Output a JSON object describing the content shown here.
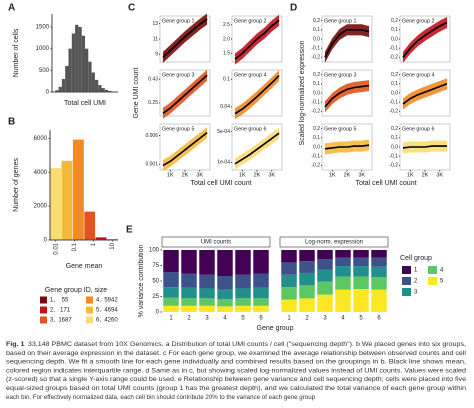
{
  "panel_labels": [
    "A",
    "B",
    "C",
    "D",
    "E"
  ],
  "panel_a": {
    "type": "histogram",
    "ylabel": "Number of cells",
    "xlabel": "Total cell UMI",
    "bins": [
      500,
      700,
      900,
      1100,
      1300,
      1500,
      1700,
      1900,
      2100,
      2300,
      2500,
      2700,
      2900,
      3100,
      3300,
      3500,
      3700,
      3900,
      4100,
      4300,
      4500
    ],
    "counts": [
      10,
      40,
      120,
      300,
      600,
      1000,
      1350,
      1550,
      1500,
      1300,
      1000,
      700,
      450,
      280,
      160,
      90,
      50,
      25,
      12,
      5
    ],
    "ylim": [
      0,
      1800
    ],
    "yticks": [
      0,
      500,
      1000,
      1500
    ],
    "color": "#555555"
  },
  "panel_b": {
    "type": "bar",
    "ylabel": "Number of genes",
    "xlabel": "Gene mean",
    "xlim": [
      0.005,
      20
    ],
    "xticks": [
      0.01,
      0.1,
      1,
      10
    ],
    "ylim": [
      0,
      6500
    ],
    "yticks": [
      0,
      2000,
      4000,
      6000
    ],
    "legend_title": "Gene group ID, size",
    "groups": [
      {
        "label": "1,    55",
        "size": 55,
        "color": "#7a0a0a"
      },
      {
        "label": "2,   171",
        "size": 171,
        "color": "#c1121f"
      },
      {
        "label": "3,  1687",
        "size": 1687,
        "color": "#e2531d"
      },
      {
        "label": "4,  5942",
        "size": 5942,
        "color": "#f08a24"
      },
      {
        "label": "5,  4694",
        "size": 4694,
        "color": "#f6b83c"
      },
      {
        "label": "6,  4260",
        "size": 4260,
        "color": "#f9dc72"
      }
    ]
  },
  "panel_c": {
    "type": "line",
    "ylabel": "Gene UMI count",
    "xlabel": "Total cell UMI count",
    "x": [
      500,
      1000,
      1500,
      2000,
      2500,
      3000,
      3500
    ],
    "xlim": [
      300,
      3700
    ],
    "xticks": [
      {
        "value": 1000,
        "label": "1K"
      },
      {
        "value": 2000,
        "label": "2K"
      },
      {
        "value": 3000,
        "label": "3K"
      }
    ],
    "panels": [
      {
        "title": "Gene group 1",
        "ylim": [
          8,
          14
        ],
        "yticks": [
          9,
          11,
          13
        ],
        "values": [
          8.6,
          9.5,
          10.4,
          11.3,
          12.1,
          12.9,
          13.6
        ]
      },
      {
        "title": "Gene group 2",
        "ylim": [
          1.2,
          2.8
        ],
        "yticks": [
          1.5,
          {
            "value": 2,
            "label": "2.0"
          },
          2.5
        ],
        "values": [
          1.3,
          1.5,
          1.75,
          2.0,
          2.2,
          2.45,
          2.65
        ]
      },
      {
        "title": "Gene group 3",
        "ylim": [
          0.15,
          0.5
        ],
        "yticks": [
          0.25,
          0.43
        ],
        "values": [
          0.17,
          0.21,
          0.26,
          0.31,
          0.36,
          0.41,
          0.46
        ]
      },
      {
        "title": "Gene group 4",
        "ylim": [
          0.02,
          0.12
        ],
        "yticks": [
          0.04,
          0.1
        ],
        "values": [
          0.025,
          0.035,
          0.048,
          0.062,
          0.077,
          0.092,
          0.108
        ]
      },
      {
        "title": "Gene group 5",
        "ylim": [
          0,
          0.008
        ],
        "yticks": [
          0.001,
          0.006
        ],
        "values": [
          0.0008,
          0.0015,
          0.0025,
          0.0035,
          0.0045,
          0.0055,
          0.0065
        ]
      },
      {
        "title": "Gene group 6",
        "ylim": [
          0,
          0.0006
        ],
        "yticks": [
          {
            "value": 0.0001,
            "label": "1e-04"
          },
          {
            "value": 0.0005,
            "label": "5e-04"
          }
        ],
        "values": [
          8e-05,
          0.00014,
          0.0002,
          0.00027,
          0.00034,
          0.00041,
          0.00048
        ]
      }
    ]
  },
  "panel_d": {
    "type": "line",
    "ylabel": "Scaled log-normalized expression",
    "xlabel": "Total cell UMI count",
    "x": [
      500,
      1000,
      1500,
      2000,
      2500,
      3000,
      3500
    ],
    "xlim": [
      300,
      3700
    ],
    "xticks": [
      {
        "value": 1000,
        "label": "1K"
      },
      {
        "value": 2000,
        "label": "2K"
      },
      {
        "value": 3000,
        "label": "3K"
      }
    ],
    "ylim": [
      -0.25,
      0.25
    ],
    "yticks": [
      {
        "value": -0.2,
        "label": "-0,2"
      },
      {
        "value": -0.1,
        "label": "-0,1"
      },
      {
        "value": 0,
        "label": "0,0"
      },
      {
        "value": 0.1,
        "label": "0,1"
      },
      {
        "value": 0.2,
        "label": "0,2"
      }
    ],
    "panels": [
      {
        "title": "Gene group 1",
        "values": [
          -0.2,
          -0.05,
          0.05,
          0.1,
          0.1,
          0.1,
          0.08
        ]
      },
      {
        "title": "Gene group 2",
        "values": [
          -0.2,
          -0.1,
          -0.02,
          0.04,
          0.09,
          0.14,
          0.18
        ]
      },
      {
        "title": "Gene group 3",
        "values": [
          -0.15,
          -0.06,
          0.0,
          0.04,
          0.06,
          0.07,
          0.08
        ]
      },
      {
        "title": "Gene group 4",
        "values": [
          -0.12,
          -0.06,
          -0.02,
          0.01,
          0.04,
          0.07,
          0.1
        ]
      },
      {
        "title": "Gene group 5",
        "values": [
          -0.02,
          -0.01,
          0,
          0,
          0.01,
          0.01,
          0.02
        ]
      },
      {
        "title": "Gene group 6",
        "values": [
          -0.01,
          0,
          0,
          0,
          0.01,
          0.01,
          0.01
        ]
      }
    ]
  },
  "panel_e": {
    "type": "stacked_bar",
    "ylabel": "% variance contribution",
    "xlabel": "Gene group",
    "categories": [
      "1",
      "2",
      "3",
      "4",
      "5",
      "6"
    ],
    "ylim": [
      0,
      100
    ],
    "yticks": [
      0,
      25,
      50,
      75,
      100
    ],
    "legend_title": "Cell group",
    "series": [
      {
        "name": "1",
        "color": "#440154"
      },
      {
        "name": "2",
        "color": "#3b528b"
      },
      {
        "name": "3",
        "color": "#21908c"
      },
      {
        "name": "4",
        "color": "#5dc863"
      },
      {
        "name": "5",
        "color": "#fde725"
      }
    ],
    "facets": [
      {
        "title": "UMI counts",
        "values": [
          [
            36,
            38,
            40,
            42,
            40,
            38
          ],
          [
            24,
            23,
            22,
            22,
            22,
            23
          ],
          [
            17,
            17,
            16,
            15,
            16,
            17
          ],
          [
            13,
            12,
            12,
            12,
            12,
            12
          ],
          [
            10,
            10,
            10,
            9,
            10,
            10
          ]
        ]
      },
      {
        "title": "Log-norm. expression",
        "values": [
          [
            20,
            18,
            15,
            12,
            12,
            12
          ],
          [
            20,
            19,
            17,
            14,
            14,
            15
          ],
          [
            20,
            20,
            19,
            17,
            17,
            17
          ],
          [
            20,
            21,
            21,
            21,
            20,
            20
          ],
          [
            20,
            22,
            28,
            36,
            37,
            36
          ]
        ]
      }
    ]
  },
  "caption": {
    "label": "Fig. 1",
    "lines": [
      "33,148 PBMC dataset from 10X Genomics. a Distribution of total UMI counts / cell (\"sequencing depth\"). b We placed genes into six groups,",
      "based on their average expression in the dataset. c For each gene group, we examined the average relationship between observed counts and cell",
      "sequencing depth. We fit a smooth line for each gene individually and combined results based on the groupings in b. Black line shows mean,",
      "colored region indicates interquartile range. d Same as in c, but showing scaled log-normalized values instead of UMI counts. Values were scaled",
      "(z-scored) so that a single Y-axis range could be used. e Relationship between gene variance and cell sequencing depth; cells were placed into five",
      "equal-sized groups based on total UMI counts (group 1 has the greatest depth), and we calculated the total variance of each gene group within",
      "each bin. For effectively normalized data, each cell bin should contribute 20% to the variance of each gene group"
    ]
  }
}
